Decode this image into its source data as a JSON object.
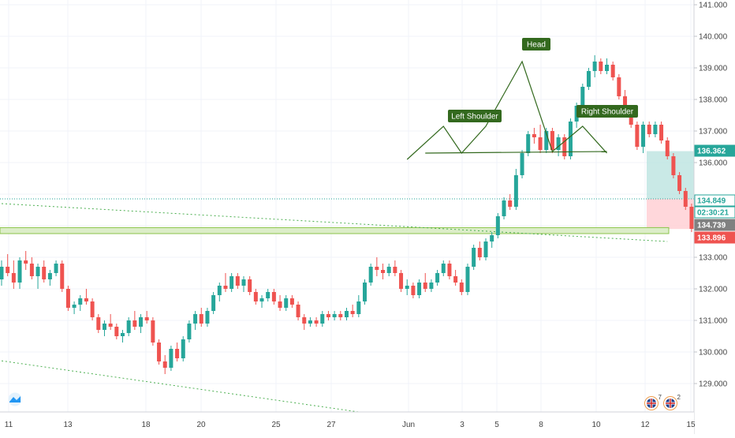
{
  "chart_data": {
    "type": "candlestick",
    "instrument_note": "",
    "y_axis": {
      "ticks": [
        129.0,
        130.0,
        131.0,
        132.0,
        133.0,
        134.0,
        135.0,
        136.0,
        137.0,
        138.0,
        139.0,
        140.0,
        141.0
      ],
      "tick_labels": [
        "129.000",
        "130.000",
        "131.000",
        "132.000",
        "133.000",
        "",
        "",
        "136.000",
        "137.000",
        "138.000",
        "139.000",
        "140.000",
        "141.000"
      ],
      "range": [
        128.1,
        141.15
      ]
    },
    "x_axis": {
      "labels": [
        "11",
        "13",
        "18",
        "20",
        "25",
        "27",
        "Jun",
        "3",
        "5",
        "8",
        "10",
        "12",
        "15"
      ]
    },
    "price_tags": [
      {
        "label": "136.362",
        "value": 136.362,
        "bg": "#26a69a",
        "fg": "#ffffff"
      },
      {
        "label": "134.849",
        "value": 134.849,
        "bg": "#ffffff",
        "fg": "#26a69a",
        "outline": true
      },
      {
        "label": "02:30:21",
        "value": 134.62,
        "bg": "#ffffff",
        "fg": "#26a69a",
        "outline": true
      },
      {
        "label": "134.739",
        "value": 134.739,
        "bg": "#808080",
        "fg": "#ffffff"
      },
      {
        "label": "133.896",
        "value": 133.896,
        "bg": "#ef5350",
        "fg": "#ffffff"
      }
    ],
    "pattern_labels": [
      "Left Shoulder",
      "Head",
      "Right Shoulder"
    ],
    "pattern_points": [
      {
        "bar": 67,
        "price": 136.1
      },
      {
        "bar": 73,
        "price": 137.15
      },
      {
        "bar": 76,
        "price": 136.3
      },
      {
        "bar": 80,
        "price": 137.15
      },
      {
        "bar": 86,
        "price": 139.2
      },
      {
        "bar": 91,
        "price": 136.35
      },
      {
        "bar": 96,
        "price": 137.15
      },
      {
        "bar": 100,
        "price": 136.3
      }
    ],
    "neckline": {
      "bar_start": 70,
      "price_start": 136.3,
      "bar_end": 100,
      "price_end": 136.35
    },
    "support_zone": {
      "price_low": 133.75,
      "price_high": 133.94
    },
    "position_box": {
      "entry": 134.849,
      "target": 136.362,
      "stop": 133.896
    },
    "trendlines": [
      {
        "from": {
          "bar": 0,
          "price": 134.7
        },
        "to": {
          "bar": 110,
          "price": 133.5
        }
      },
      {
        "from": {
          "bar": 0,
          "price": 129.72
        },
        "to": {
          "bar": 59,
          "price": 128.1
        }
      }
    ],
    "candles": [
      [
        132.3,
        132.9,
        132.1,
        132.7
      ],
      [
        132.7,
        133.1,
        132.4,
        132.5
      ],
      [
        132.5,
        132.9,
        132.0,
        132.2
      ],
      [
        132.2,
        133.0,
        132.0,
        132.9
      ],
      [
        132.9,
        133.2,
        132.6,
        132.8
      ],
      [
        132.8,
        133.0,
        132.3,
        132.4
      ],
      [
        132.4,
        132.8,
        132.0,
        132.7
      ],
      [
        132.7,
        132.9,
        132.2,
        132.3
      ],
      [
        132.3,
        132.6,
        132.1,
        132.5
      ],
      [
        132.5,
        132.9,
        132.4,
        132.8
      ],
      [
        132.8,
        132.9,
        131.9,
        132.0
      ],
      [
        132.0,
        132.1,
        131.3,
        131.4
      ],
      [
        131.4,
        131.6,
        131.2,
        131.5
      ],
      [
        131.5,
        131.8,
        131.3,
        131.7
      ],
      [
        131.7,
        132.0,
        131.5,
        131.6
      ],
      [
        131.6,
        131.7,
        131.0,
        131.1
      ],
      [
        131.1,
        131.2,
        130.6,
        130.7
      ],
      [
        130.7,
        131.0,
        130.5,
        130.9
      ],
      [
        130.9,
        131.2,
        130.7,
        130.8
      ],
      [
        130.8,
        130.9,
        130.4,
        130.5
      ],
      [
        130.5,
        130.7,
        130.3,
        130.6
      ],
      [
        130.6,
        131.1,
        130.5,
        131.0
      ],
      [
        131.0,
        131.3,
        130.7,
        130.8
      ],
      [
        130.8,
        131.2,
        130.6,
        131.1
      ],
      [
        131.1,
        131.3,
        130.9,
        131.0
      ],
      [
        131.0,
        131.1,
        130.2,
        130.3
      ],
      [
        130.3,
        130.4,
        129.6,
        129.7
      ],
      [
        129.7,
        129.9,
        129.3,
        129.5
      ],
      [
        129.5,
        130.2,
        129.4,
        130.1
      ],
      [
        130.1,
        130.3,
        129.7,
        129.8
      ],
      [
        129.8,
        130.5,
        129.7,
        130.4
      ],
      [
        130.4,
        131.0,
        130.3,
        130.9
      ],
      [
        130.9,
        131.3,
        130.7,
        131.2
      ],
      [
        131.2,
        131.4,
        130.8,
        130.9
      ],
      [
        130.9,
        131.4,
        130.8,
        131.3
      ],
      [
        131.3,
        131.9,
        131.2,
        131.8
      ],
      [
        131.8,
        132.2,
        131.6,
        132.1
      ],
      [
        132.1,
        132.5,
        131.9,
        132.0
      ],
      [
        132.0,
        132.5,
        131.9,
        132.4
      ],
      [
        132.4,
        132.5,
        132.0,
        132.1
      ],
      [
        132.1,
        132.4,
        131.9,
        132.3
      ],
      [
        132.3,
        132.4,
        131.8,
        131.9
      ],
      [
        131.9,
        132.0,
        131.5,
        131.6
      ],
      [
        131.6,
        131.8,
        131.4,
        131.7
      ],
      [
        131.7,
        132.0,
        131.6,
        131.9
      ],
      [
        131.9,
        132.0,
        131.5,
        131.6
      ],
      [
        131.6,
        131.8,
        131.3,
        131.4
      ],
      [
        131.4,
        131.8,
        131.3,
        131.7
      ],
      [
        131.7,
        131.8,
        131.4,
        131.5
      ],
      [
        131.5,
        131.6,
        131.0,
        131.1
      ],
      [
        131.1,
        131.2,
        130.7,
        130.9
      ],
      [
        130.9,
        131.1,
        130.8,
        131.0
      ],
      [
        131.0,
        131.1,
        130.8,
        130.9
      ],
      [
        130.9,
        131.3,
        130.8,
        131.2
      ],
      [
        131.2,
        131.3,
        131.0,
        131.1
      ],
      [
        131.1,
        131.3,
        131.0,
        131.2
      ],
      [
        131.2,
        131.3,
        131.0,
        131.1
      ],
      [
        131.1,
        131.4,
        131.0,
        131.3
      ],
      [
        131.3,
        131.5,
        131.1,
        131.2
      ],
      [
        131.2,
        131.8,
        131.1,
        131.6
      ],
      [
        131.6,
        132.3,
        131.5,
        132.2
      ],
      [
        132.2,
        132.8,
        132.1,
        132.7
      ],
      [
        132.7,
        133.0,
        132.4,
        132.6
      ],
      [
        132.6,
        132.8,
        132.3,
        132.5
      ],
      [
        132.5,
        132.8,
        132.4,
        132.7
      ],
      [
        132.7,
        132.9,
        132.4,
        132.5
      ],
      [
        132.5,
        132.6,
        131.9,
        132.0
      ],
      [
        132.0,
        132.3,
        131.8,
        132.1
      ],
      [
        132.1,
        132.2,
        131.7,
        131.8
      ],
      [
        131.8,
        132.3,
        131.7,
        132.2
      ],
      [
        132.2,
        132.5,
        131.9,
        132.0
      ],
      [
        132.0,
        132.3,
        131.9,
        132.2
      ],
      [
        132.2,
        132.6,
        132.1,
        132.5
      ],
      [
        132.5,
        132.9,
        132.4,
        132.8
      ],
      [
        132.8,
        132.9,
        132.3,
        132.4
      ],
      [
        132.4,
        132.6,
        132.1,
        132.2
      ],
      [
        132.2,
        132.3,
        131.8,
        131.9
      ],
      [
        131.9,
        132.8,
        131.8,
        132.7
      ],
      [
        132.7,
        133.4,
        132.6,
        133.3
      ],
      [
        133.3,
        133.5,
        132.9,
        133.0
      ],
      [
        133.0,
        133.6,
        132.9,
        133.5
      ],
      [
        133.5,
        133.8,
        133.3,
        133.7
      ],
      [
        133.7,
        134.4,
        133.6,
        134.3
      ],
      [
        134.3,
        134.9,
        134.2,
        134.8
      ],
      [
        134.8,
        135.0,
        134.5,
        134.6
      ],
      [
        134.6,
        135.8,
        134.5,
        135.6
      ],
      [
        135.6,
        136.4,
        135.5,
        136.3
      ],
      [
        136.3,
        137.0,
        136.2,
        136.9
      ],
      [
        136.9,
        137.1,
        136.6,
        136.8
      ],
      [
        136.8,
        137.2,
        136.3,
        136.4
      ],
      [
        136.4,
        137.1,
        136.3,
        137.0
      ],
      [
        137.0,
        137.1,
        136.3,
        136.4
      ],
      [
        136.4,
        136.9,
        136.2,
        136.8
      ],
      [
        136.8,
        136.9,
        136.1,
        136.2
      ],
      [
        136.2,
        137.4,
        136.1,
        137.3
      ],
      [
        137.3,
        137.9,
        137.1,
        137.8
      ],
      [
        137.8,
        138.5,
        137.7,
        138.4
      ],
      [
        138.4,
        139.0,
        138.3,
        138.9
      ],
      [
        138.9,
        139.4,
        138.7,
        139.2
      ],
      [
        139.2,
        139.3,
        138.8,
        138.9
      ],
      [
        138.9,
        139.3,
        138.8,
        139.1
      ],
      [
        139.1,
        139.2,
        138.6,
        138.7
      ],
      [
        138.7,
        138.8,
        138.0,
        138.1
      ],
      [
        138.1,
        138.3,
        137.6,
        137.7
      ],
      [
        137.7,
        137.8,
        137.1,
        137.2
      ],
      [
        137.2,
        137.3,
        136.4,
        136.5
      ],
      [
        136.5,
        137.3,
        136.3,
        137.2
      ],
      [
        137.2,
        137.3,
        136.8,
        136.9
      ],
      [
        136.9,
        137.3,
        136.8,
        137.2
      ],
      [
        137.2,
        137.3,
        136.6,
        136.7
      ],
      [
        136.7,
        136.8,
        136.1,
        136.2
      ],
      [
        136.2,
        136.3,
        135.5,
        135.6
      ],
      [
        135.6,
        135.7,
        135.0,
        135.1
      ],
      [
        135.1,
        135.2,
        134.5,
        134.6
      ],
      [
        134.6,
        134.7,
        133.8,
        133.9
      ],
      [
        133.9,
        135.0,
        133.8,
        134.85
      ]
    ]
  },
  "ui": {
    "badge_1_count": "7",
    "badge_2_count": "2"
  }
}
